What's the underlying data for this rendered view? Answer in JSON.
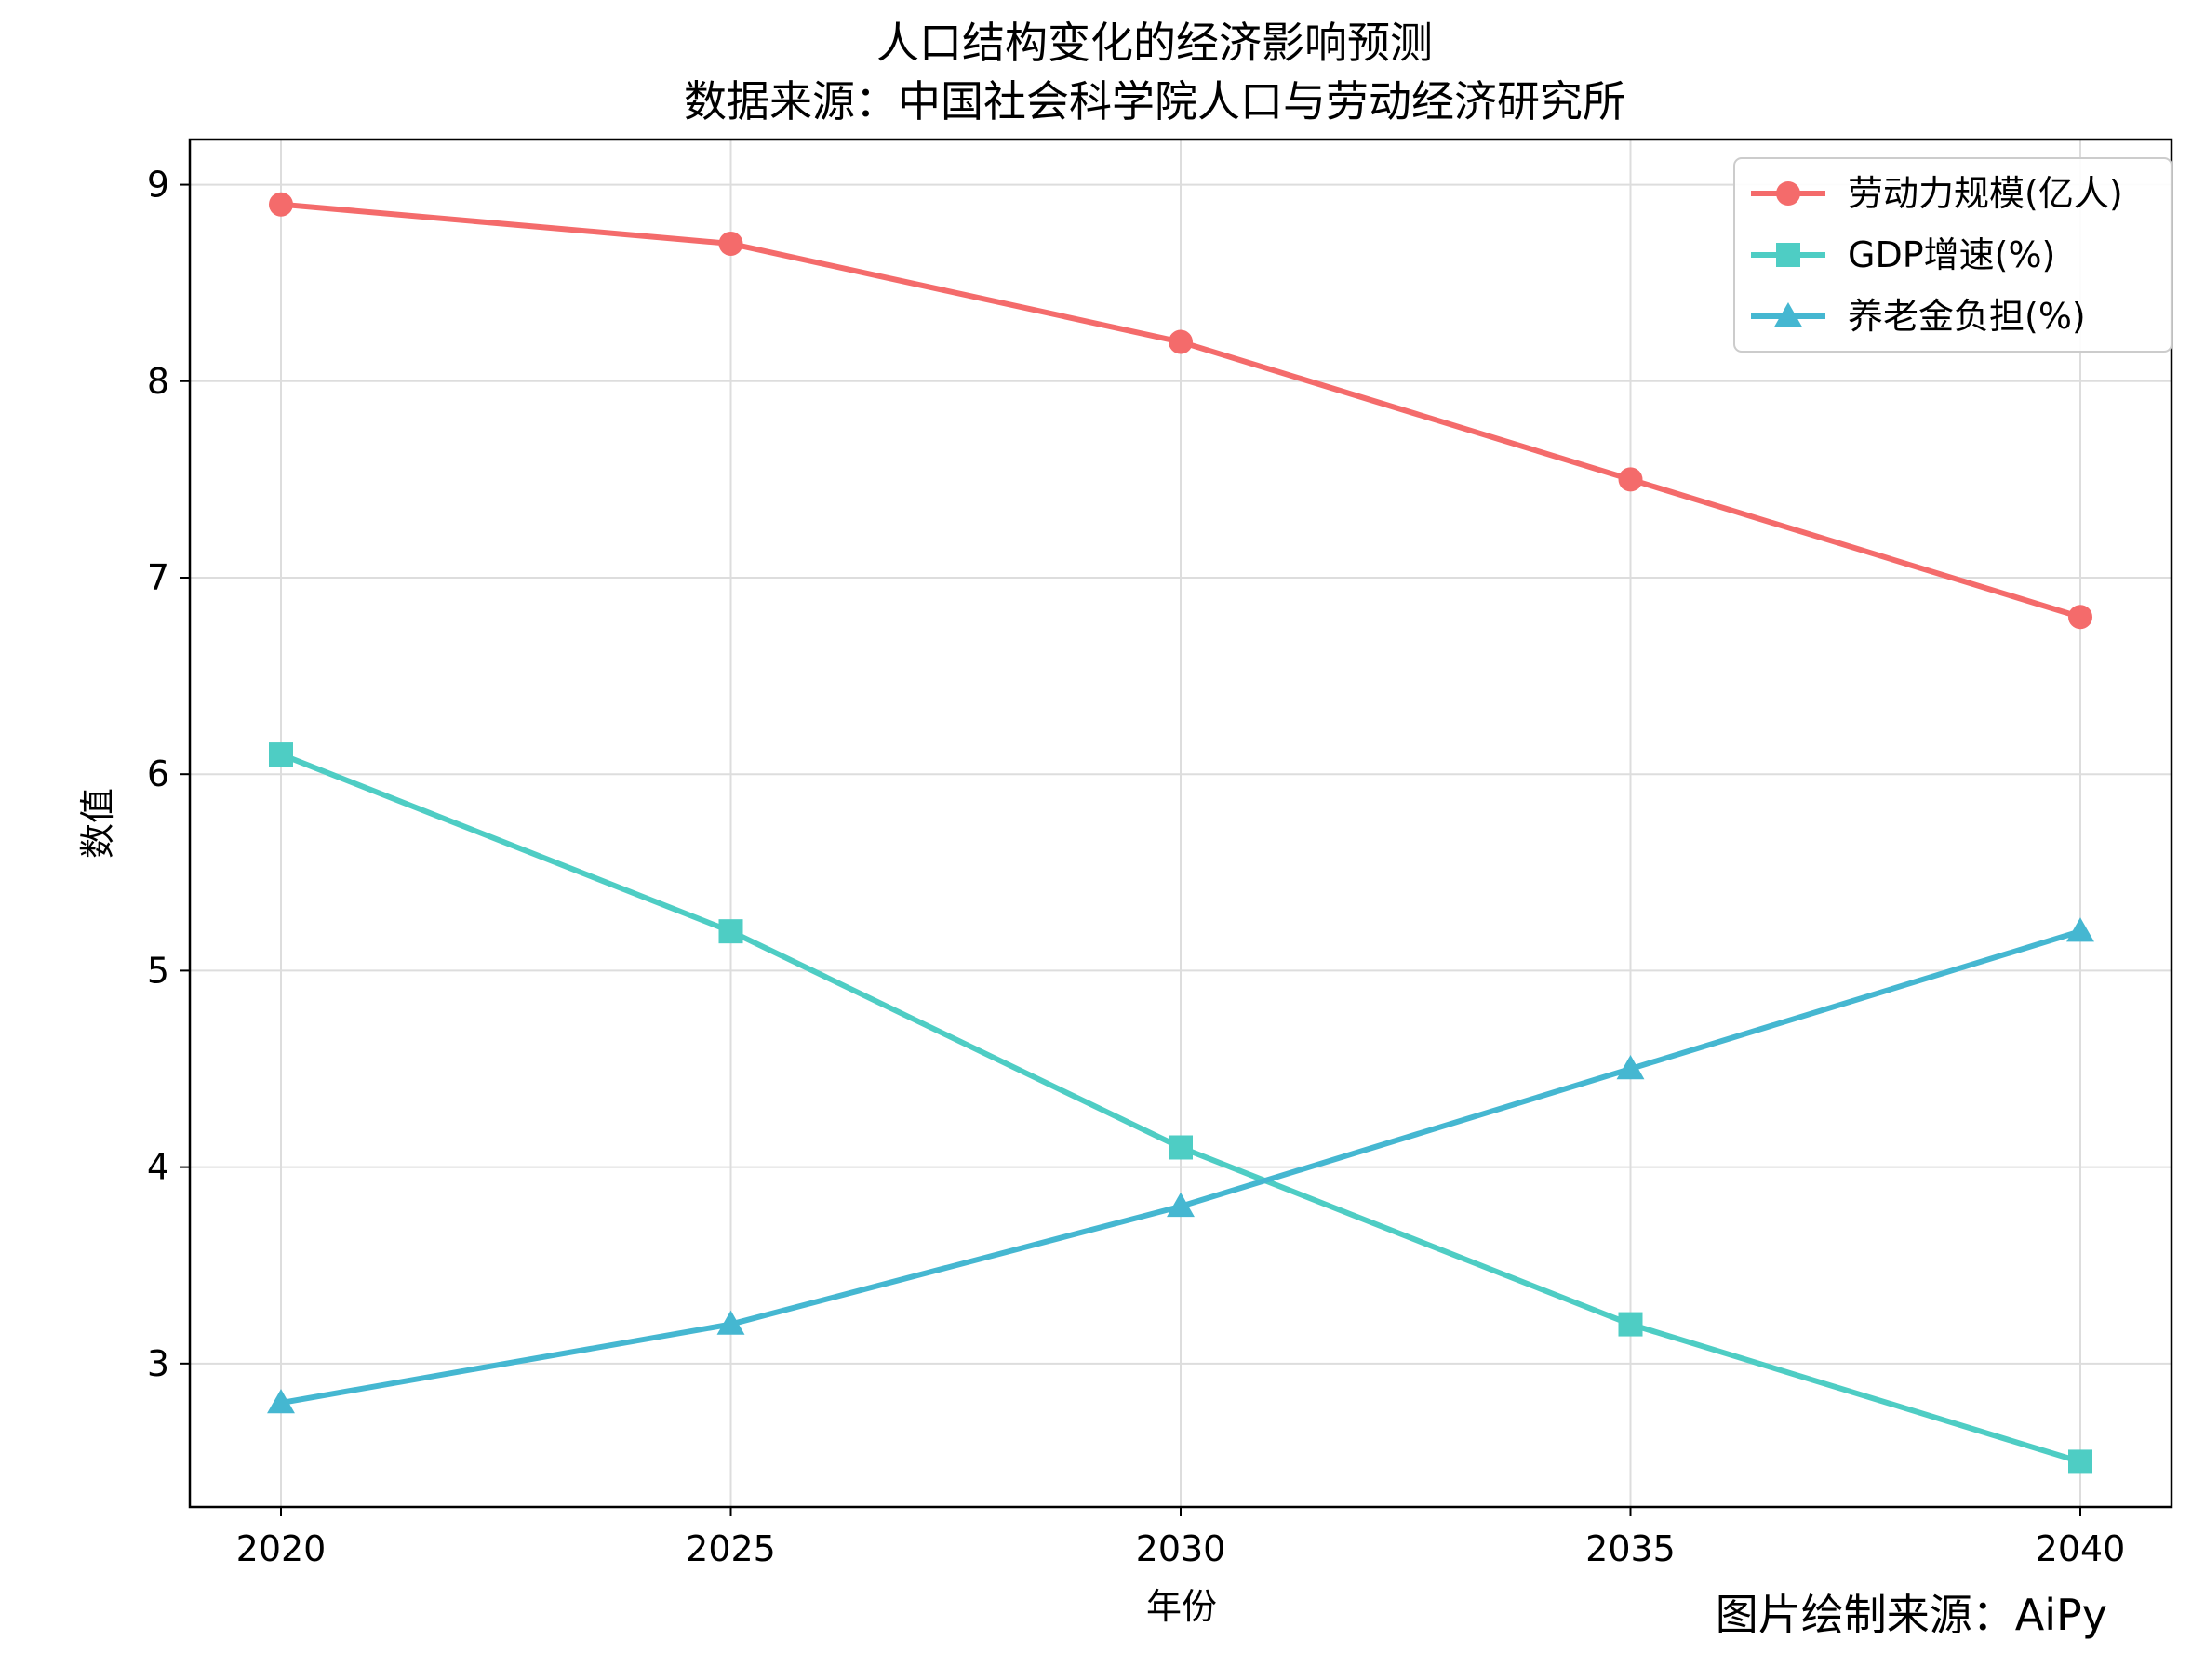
{
  "chart_data": {
    "type": "line",
    "title": "人口结构变化的经济影响预测",
    "subtitle": "数据来源：中国社会科学院人口与劳动经济研究所",
    "xlabel": "年份",
    "ylabel": "数值",
    "x": [
      2020,
      2025,
      2030,
      2035,
      2040
    ],
    "ylim": [
      2.27,
      9.23
    ],
    "yticks": [
      3,
      4,
      5,
      6,
      7,
      8,
      9
    ],
    "grid": true,
    "legend_position": "top-right",
    "series": [
      {
        "name": "劳动力规模(亿人)",
        "values": [
          8.9,
          8.7,
          8.2,
          7.5,
          6.8
        ],
        "color": "#f46b6b",
        "marker": "circle"
      },
      {
        "name": "GDP增速(%)",
        "values": [
          6.1,
          5.2,
          4.1,
          3.2,
          2.5
        ],
        "color": "#4ecdc4",
        "marker": "square"
      },
      {
        "name": "养老金负担(%)",
        "values": [
          2.8,
          3.2,
          3.8,
          4.5,
          5.2
        ],
        "color": "#45b7d1",
        "marker": "triangle"
      }
    ]
  },
  "footer": {
    "source_credit": "图片绘制来源：AiPy"
  }
}
